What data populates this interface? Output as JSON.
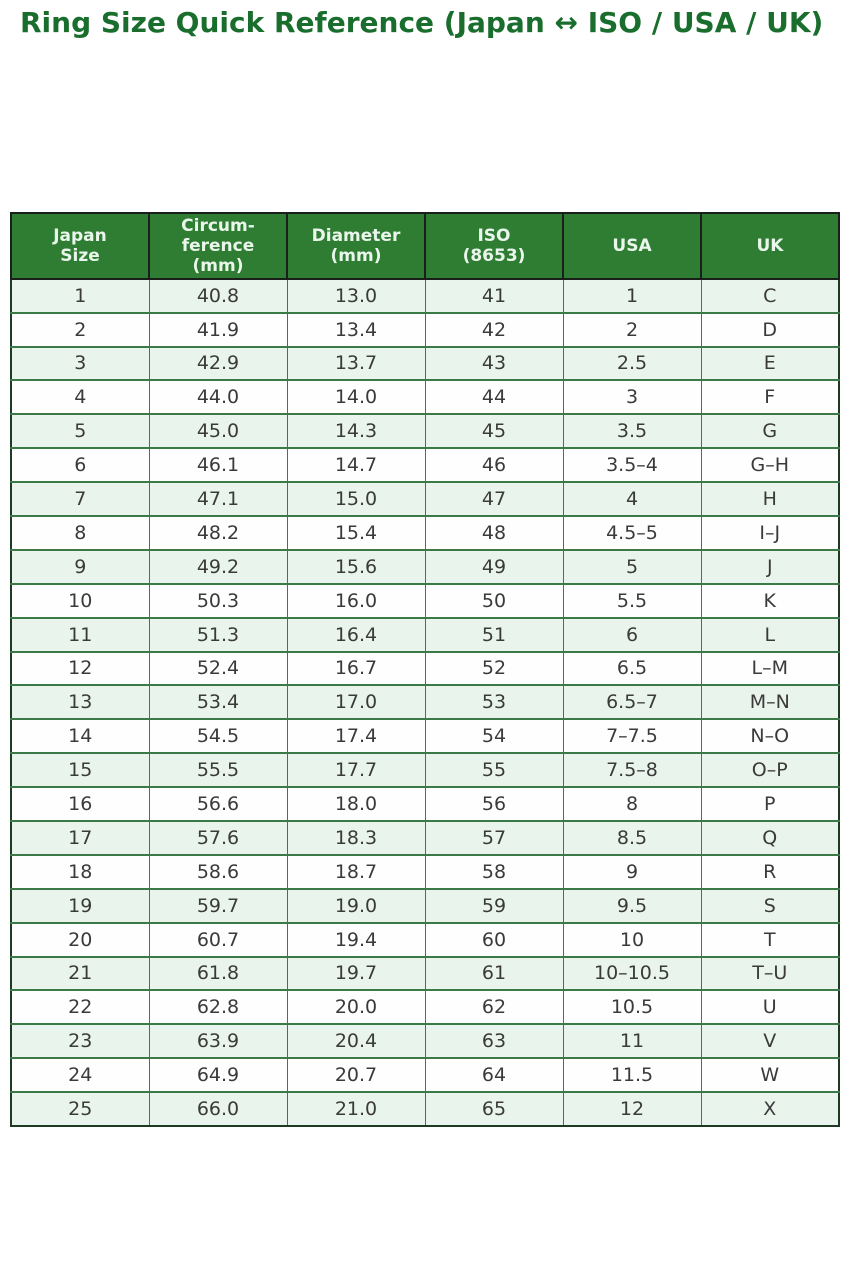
{
  "page": {
    "title": "Ring Size Quick Reference (Japan ↔ ISO / USA / UK)"
  },
  "colors": {
    "title_color": "#1a6e2d",
    "header_bg": "#2f7d33",
    "header_text": "#eaf6ec",
    "row_stripe": "#e9f4ec",
    "row_plain": "#fefefe",
    "border_outer": "#1e3a22",
    "border_header": "#1b1f1b",
    "border_inner": "#3b7a46",
    "body_text": "#3a3a3a",
    "page_bg": "#ffffff"
  },
  "chart_data": {
    "type": "table",
    "title": "Ring Size Quick Reference (Japan ↔ ISO / USA / UK)",
    "columns": [
      "Japan\nSize",
      "Circum-\nference\n(mm)",
      "Diameter\n(mm)",
      "ISO\n(8653)",
      "USA",
      "UK"
    ],
    "rows": [
      [
        "1",
        "40.8",
        "13.0",
        "41",
        "1",
        "C"
      ],
      [
        "2",
        "41.9",
        "13.4",
        "42",
        "2",
        "D"
      ],
      [
        "3",
        "42.9",
        "13.7",
        "43",
        "2.5",
        "E"
      ],
      [
        "4",
        "44.0",
        "14.0",
        "44",
        "3",
        "F"
      ],
      [
        "5",
        "45.0",
        "14.3",
        "45",
        "3.5",
        "G"
      ],
      [
        "6",
        "46.1",
        "14.7",
        "46",
        "3.5–4",
        "G–H"
      ],
      [
        "7",
        "47.1",
        "15.0",
        "47",
        "4",
        "H"
      ],
      [
        "8",
        "48.2",
        "15.4",
        "48",
        "4.5–5",
        "I–J"
      ],
      [
        "9",
        "49.2",
        "15.6",
        "49",
        "5",
        "J"
      ],
      [
        "10",
        "50.3",
        "16.0",
        "50",
        "5.5",
        "K"
      ],
      [
        "11",
        "51.3",
        "16.4",
        "51",
        "6",
        "L"
      ],
      [
        "12",
        "52.4",
        "16.7",
        "52",
        "6.5",
        "L–M"
      ],
      [
        "13",
        "53.4",
        "17.0",
        "53",
        "6.5–7",
        "M–N"
      ],
      [
        "14",
        "54.5",
        "17.4",
        "54",
        "7–7.5",
        "N–O"
      ],
      [
        "15",
        "55.5",
        "17.7",
        "55",
        "7.5–8",
        "O–P"
      ],
      [
        "16",
        "56.6",
        "18.0",
        "56",
        "8",
        "P"
      ],
      [
        "17",
        "57.6",
        "18.3",
        "57",
        "8.5",
        "Q"
      ],
      [
        "18",
        "58.6",
        "18.7",
        "58",
        "9",
        "R"
      ],
      [
        "19",
        "59.7",
        "19.0",
        "59",
        "9.5",
        "S"
      ],
      [
        "20",
        "60.7",
        "19.4",
        "60",
        "10",
        "T"
      ],
      [
        "21",
        "61.8",
        "19.7",
        "61",
        "10–10.5",
        "T–U"
      ],
      [
        "22",
        "62.8",
        "20.0",
        "62",
        "10.5",
        "U"
      ],
      [
        "23",
        "63.9",
        "20.4",
        "63",
        "11",
        "V"
      ],
      [
        "24",
        "64.9",
        "20.7",
        "64",
        "11.5",
        "W"
      ],
      [
        "25",
        "66.0",
        "21.0",
        "65",
        "12",
        "X"
      ]
    ],
    "layout_hints": {
      "striped_rows": true,
      "first_body_row_shaded": true,
      "header_position": "top",
      "grid": true
    }
  }
}
